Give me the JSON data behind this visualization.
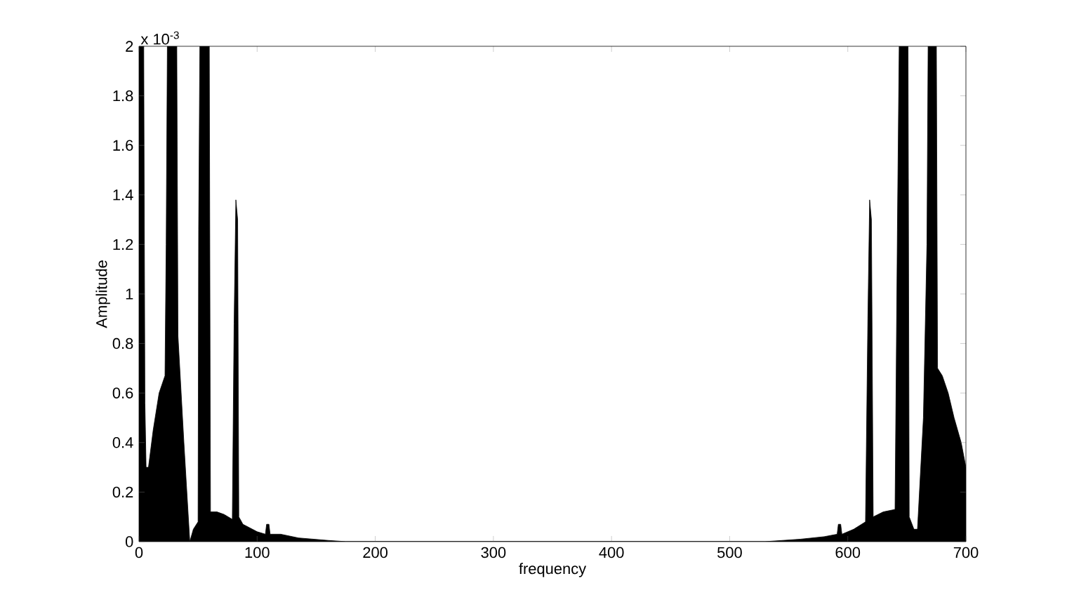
{
  "chart_data": {
    "type": "area",
    "xlabel": "frequency",
    "ylabel": "Amplitude",
    "annotations": [
      "x 10$^{-3}$"
    ],
    "color": "#000000",
    "x": [
      0,
      4,
      5,
      6,
      8,
      12,
      17,
      22,
      23,
      24,
      32,
      33,
      38,
      43,
      46,
      50,
      50.5,
      51.5,
      59.5,
      60.5,
      66,
      72,
      79,
      80.5,
      82,
      83.5,
      84.5,
      88,
      100,
      107,
      108,
      110,
      111,
      120,
      135,
      160,
      175,
      530,
      560,
      580,
      591,
      592,
      594,
      595,
      605,
      615,
      617,
      618.5,
      620,
      621.5,
      630,
      640,
      642,
      643.5,
      651,
      652,
      656,
      659,
      664,
      667,
      668,
      675,
      676,
      680,
      685,
      690,
      696,
      700
    ],
    "values": [
      2,
      2,
      0.56,
      0.3,
      0.3,
      0.45,
      0.6,
      0.67,
      1.2,
      2,
      2,
      0.83,
      0.4,
      0,
      0.05,
      0.08,
      1.26,
      2,
      2,
      0.12,
      0.12,
      0.11,
      0.09,
      0.88,
      1.38,
      1.3,
      0.1,
      0.07,
      0.04,
      0.03,
      0.07,
      0.07,
      0.03,
      0.03,
      0.015,
      0.005,
      0,
      0,
      0.01,
      0.02,
      0.03,
      0.07,
      0.07,
      0.03,
      0.05,
      0.08,
      0.9,
      1.38,
      1.3,
      0.1,
      0.12,
      0.13,
      1.26,
      2,
      2,
      0.1,
      0.05,
      0.05,
      0.5,
      1.2,
      2,
      2,
      0.7,
      0.67,
      0.6,
      0.5,
      0.4,
      0.3
    ],
    "xlim": [
      0,
      700
    ],
    "ylim": [
      0,
      2
    ],
    "xticks": [
      0,
      100,
      200,
      300,
      400,
      500,
      600,
      700
    ],
    "yticks": [
      0,
      0.2,
      0.4,
      0.6,
      0.8,
      1,
      1.2,
      1.4,
      1.6,
      1.8,
      2
    ]
  }
}
